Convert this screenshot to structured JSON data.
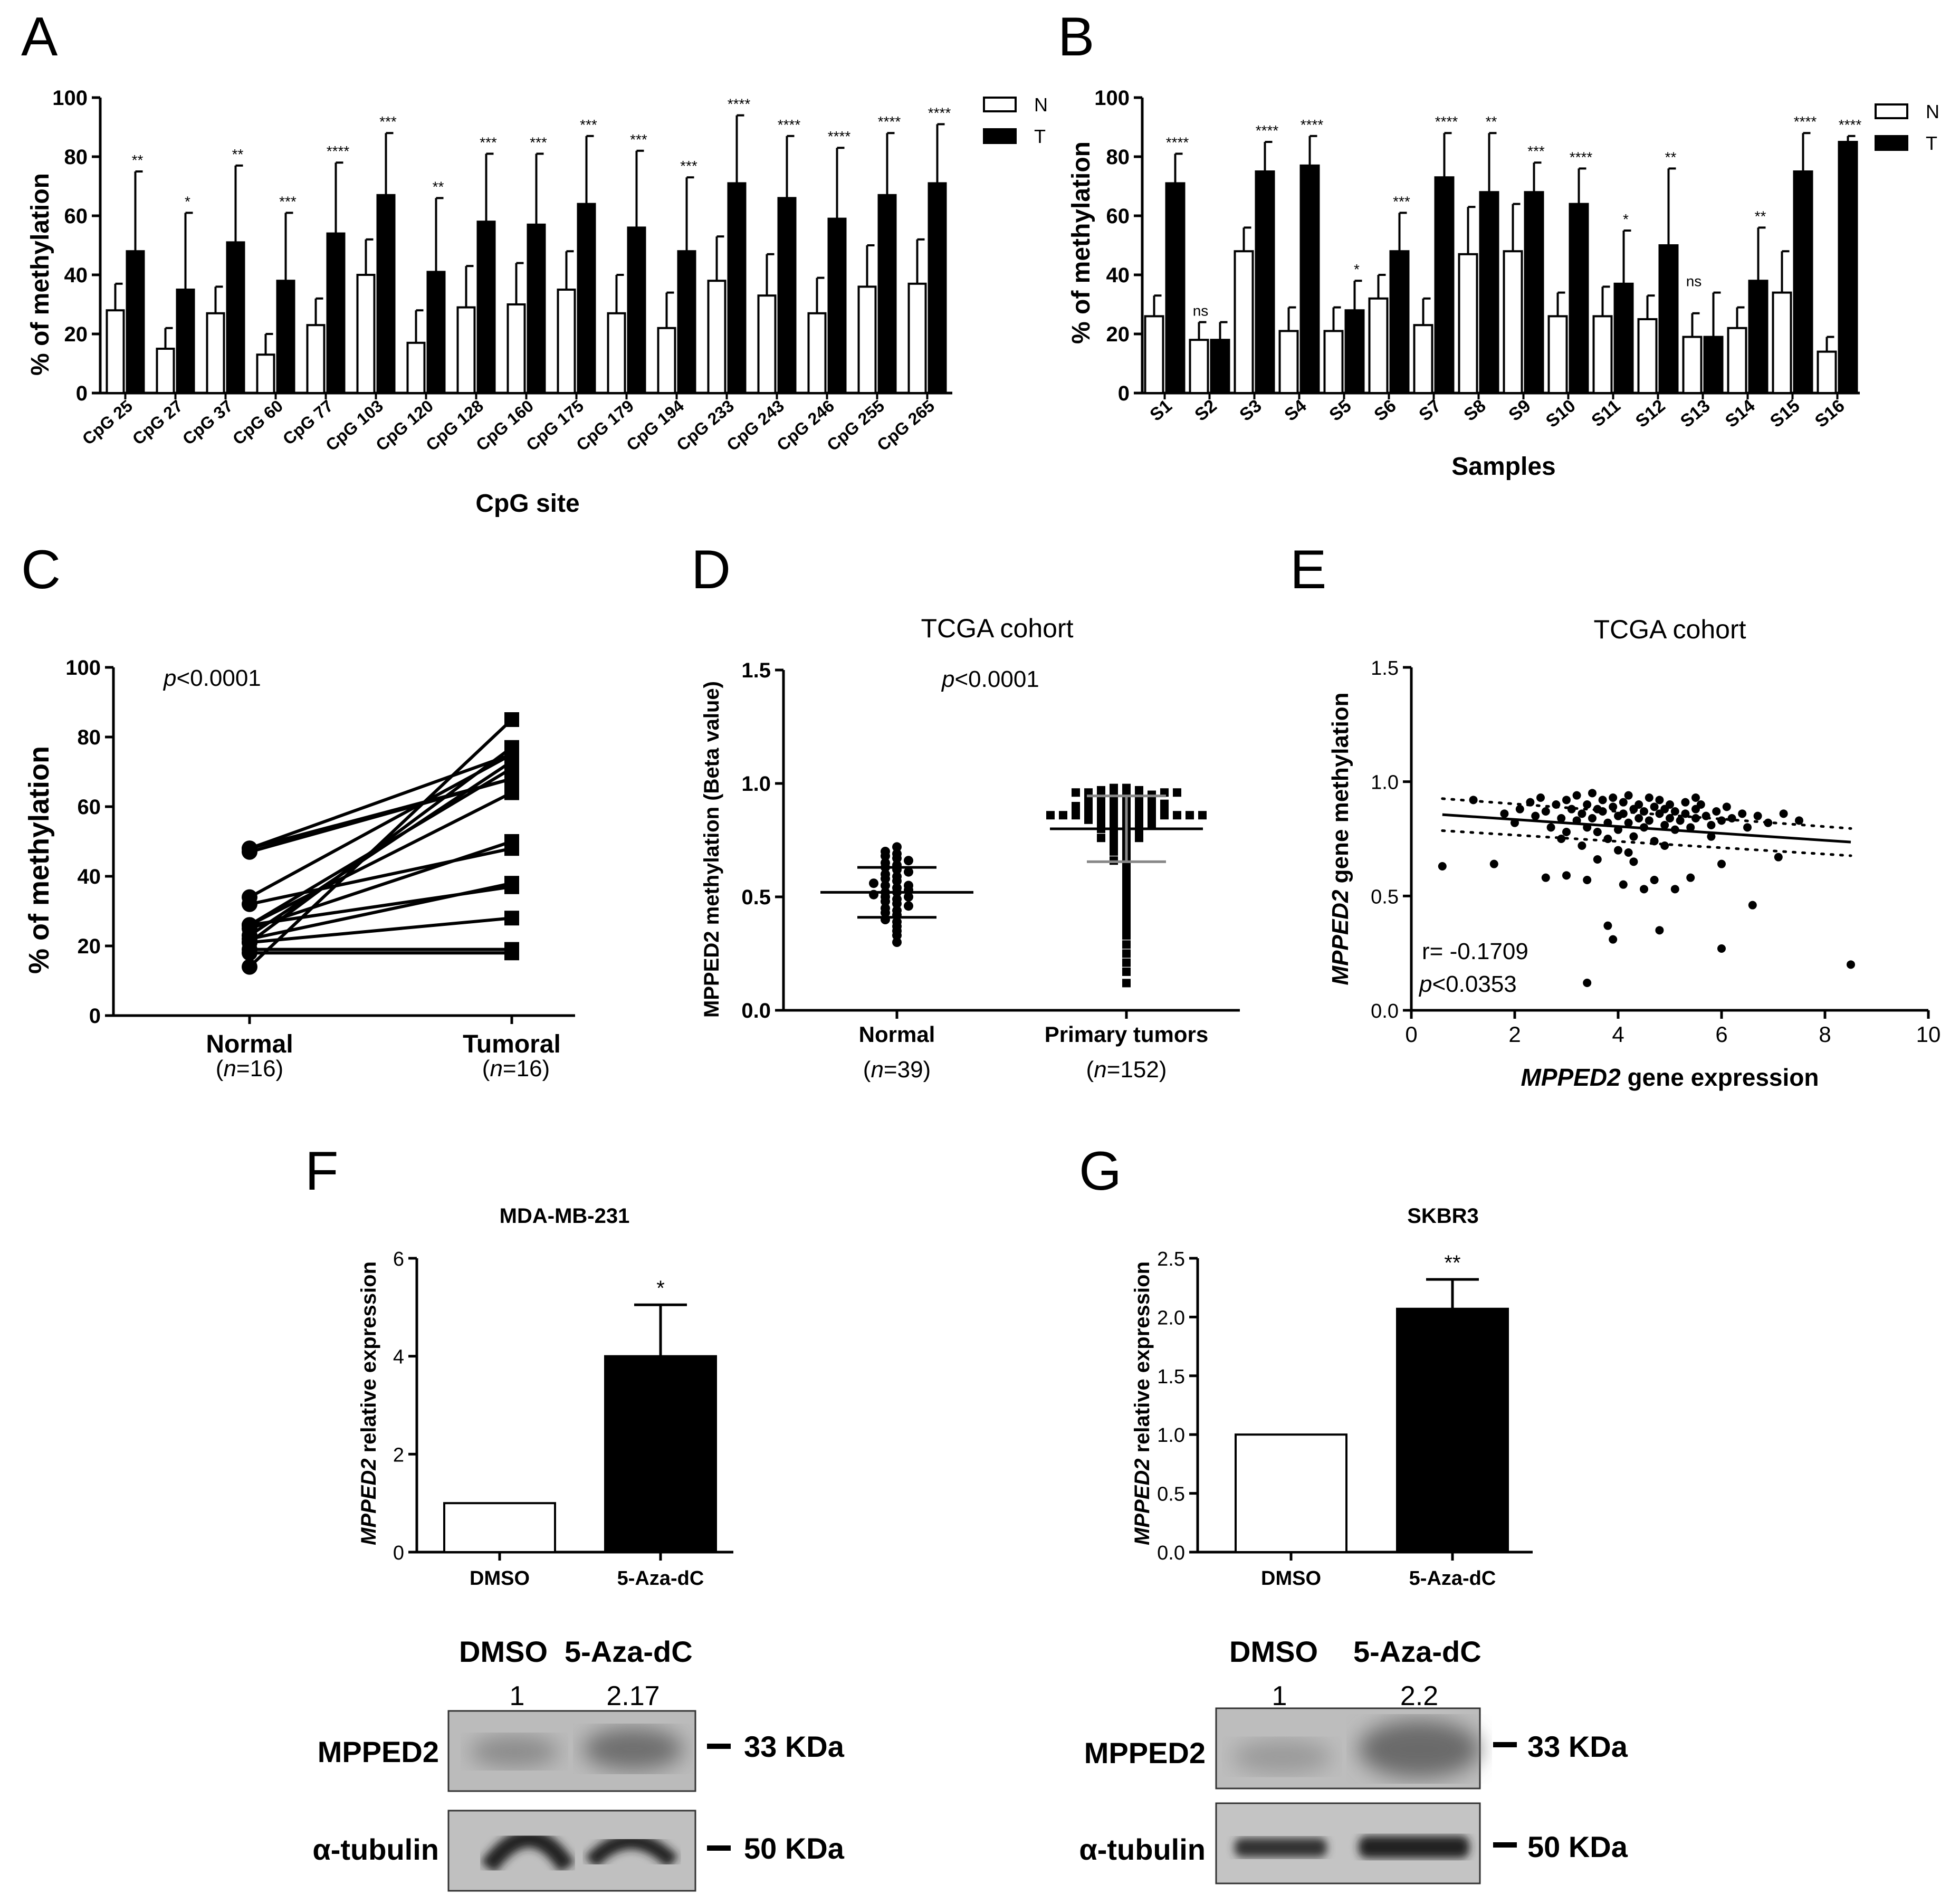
{
  "chart_data": [
    {
      "id": "A",
      "type": "bar",
      "panel_label": "A",
      "xlabel": "CpG site",
      "ylabel": "% of methylation",
      "ylim": [
        0,
        100
      ],
      "yticks": [
        "0",
        "20",
        "40",
        "60",
        "80",
        "100"
      ],
      "legend": [
        "N",
        "T"
      ],
      "legend_position": "top-right",
      "categories": [
        "CpG 25",
        "CpG 27",
        "CpG 37",
        "CpG 60",
        "CpG 77",
        "CpG 103",
        "CpG 120",
        "CpG 128",
        "CpG 160",
        "CpG 175",
        "CpG 179",
        "CpG 194",
        "CpG 233",
        "CpG 243",
        "CpG 246",
        "CpG 255",
        "CpG 265"
      ],
      "series": [
        {
          "name": "N",
          "values": [
            28,
            15,
            27,
            13,
            23,
            40,
            17,
            29,
            30,
            35,
            27,
            22,
            38,
            33,
            27,
            36,
            37
          ],
          "errors": [
            9,
            7,
            9,
            7,
            9,
            12,
            11,
            14,
            14,
            13,
            13,
            12,
            15,
            14,
            12,
            14,
            15
          ]
        },
        {
          "name": "T",
          "values": [
            48,
            35,
            51,
            38,
            54,
            67,
            41,
            58,
            57,
            64,
            56,
            48,
            71,
            66,
            59,
            67,
            71
          ],
          "errors": [
            27,
            26,
            26,
            23,
            24,
            21,
            25,
            23,
            24,
            23,
            26,
            25,
            23,
            21,
            24,
            21,
            20
          ]
        }
      ],
      "significance": [
        "**",
        "*",
        "**",
        "***",
        "****",
        "***",
        "**",
        "***",
        "***",
        "***",
        "***",
        "***",
        "****",
        "****",
        "****",
        "****",
        "****"
      ]
    },
    {
      "id": "B",
      "type": "bar",
      "panel_label": "B",
      "xlabel": "Samples",
      "ylabel": "% of methylation",
      "ylim": [
        0,
        100
      ],
      "yticks": [
        "0",
        "20",
        "40",
        "60",
        "80",
        "100"
      ],
      "legend": [
        "N",
        "T"
      ],
      "legend_position": "top-right",
      "categories": [
        "S1",
        "S2",
        "S3",
        "S4",
        "S5",
        "S6",
        "S7",
        "S8",
        "S9",
        "S10",
        "S11",
        "S12",
        "S13",
        "S14",
        "S15",
        "S16"
      ],
      "series": [
        {
          "name": "N",
          "values": [
            26,
            18,
            48,
            21,
            21,
            32,
            23,
            47,
            48,
            26,
            26,
            25,
            19,
            22,
            34,
            14
          ],
          "errors": [
            7,
            6,
            8,
            8,
            8,
            8,
            9,
            16,
            16,
            8,
            10,
            8,
            8,
            7,
            14,
            5
          ]
        },
        {
          "name": "T",
          "values": [
            71,
            18,
            75,
            77,
            28,
            48,
            73,
            68,
            68,
            64,
            37,
            50,
            19,
            38,
            75,
            85
          ],
          "errors": [
            10,
            6,
            10,
            10,
            10,
            13,
            15,
            20,
            10,
            12,
            18,
            26,
            15,
            18,
            13,
            2
          ]
        }
      ],
      "significance": [
        "****",
        "ns",
        "****",
        "****",
        "*",
        "***",
        "****",
        "**",
        "***",
        "****",
        "*",
        "**",
        "ns",
        "**",
        "****",
        "****"
      ]
    },
    {
      "id": "C",
      "type": "line",
      "panel_label": "C",
      "ylabel": "% of methylation",
      "ylim": [
        0,
        100
      ],
      "yticks": [
        "0",
        "20",
        "40",
        "60",
        "80",
        "100"
      ],
      "annotation": "p<0.0001",
      "annotation_italic": "p",
      "annotation_rest": "<0.0001",
      "categories": [
        "Normal",
        "Tumoral"
      ],
      "n_labels": [
        "(n=16)",
        "(n=16)"
      ],
      "n_prefix": "(",
      "n_var": "n",
      "n_values": [
        "=16)",
        "=16)"
      ],
      "pairs": [
        [
          26,
          71
        ],
        [
          18,
          18
        ],
        [
          48,
          75
        ],
        [
          21,
          77
        ],
        [
          21,
          28
        ],
        [
          32,
          48
        ],
        [
          23,
          73
        ],
        [
          47,
          68
        ],
        [
          48,
          68
        ],
        [
          26,
          64
        ],
        [
          26,
          37
        ],
        [
          25,
          50
        ],
        [
          19,
          19
        ],
        [
          22,
          38
        ],
        [
          34,
          75
        ],
        [
          14,
          85
        ]
      ]
    },
    {
      "id": "D",
      "type": "scatter",
      "panel_label": "D",
      "title": "TCGA cohort",
      "ylabel": "MPPED2 methylation (Beta value)",
      "ylim": [
        0,
        1.5
      ],
      "yticks": [
        "0.0",
        "0.5",
        "1.0",
        "1.5"
      ],
      "annotation_italic": "p",
      "annotation_rest": "<0.0001",
      "categories": [
        "Normal",
        "Primary tumors"
      ],
      "n_var": "n",
      "n_values": [
        "=39)",
        "=152)"
      ],
      "groups": [
        {
          "name": "Normal",
          "n": 39,
          "mean": 0.52,
          "sd": 0.11,
          "values": [
            0.3,
            0.33,
            0.35,
            0.37,
            0.39,
            0.4,
            0.42,
            0.43,
            0.44,
            0.45,
            0.46,
            0.47,
            0.48,
            0.49,
            0.5,
            0.5,
            0.51,
            0.52,
            0.52,
            0.53,
            0.54,
            0.55,
            0.55,
            0.56,
            0.57,
            0.58,
            0.59,
            0.6,
            0.61,
            0.62,
            0.63,
            0.64,
            0.65,
            0.66,
            0.67,
            0.68,
            0.69,
            0.7,
            0.72
          ]
        },
        {
          "name": "Primary tumors",
          "n": 152,
          "mean": 0.8,
          "sd": 0.145,
          "values": [
            0.12,
            0.17,
            0.21,
            0.25,
            0.29,
            0.33,
            0.36,
            0.39,
            0.42,
            0.45,
            0.48,
            0.5,
            0.52,
            0.54,
            0.56,
            0.58,
            0.6,
            0.61,
            0.62,
            0.63,
            0.64,
            0.65,
            0.66,
            0.67,
            0.68,
            0.69,
            0.7,
            0.7,
            0.71,
            0.72,
            0.73,
            0.73,
            0.74,
            0.75,
            0.75,
            0.76,
            0.76,
            0.77,
            0.77,
            0.78,
            0.78,
            0.78,
            0.79,
            0.79,
            0.79,
            0.8,
            0.8,
            0.8,
            0.8,
            0.81,
            0.81,
            0.81,
            0.81,
            0.82,
            0.82,
            0.82,
            0.82,
            0.82,
            0.83,
            0.83,
            0.83,
            0.83,
            0.83,
            0.84,
            0.84,
            0.84,
            0.84,
            0.84,
            0.84,
            0.85,
            0.85,
            0.85,
            0.85,
            0.85,
            0.85,
            0.86,
            0.86,
            0.86,
            0.86,
            0.86,
            0.86,
            0.86,
            0.87,
            0.87,
            0.87,
            0.87,
            0.87,
            0.87,
            0.87,
            0.88,
            0.88,
            0.88,
            0.88,
            0.88,
            0.88,
            0.88,
            0.88,
            0.89,
            0.89,
            0.89,
            0.89,
            0.89,
            0.89,
            0.89,
            0.89,
            0.9,
            0.9,
            0.9,
            0.9,
            0.9,
            0.9,
            0.9,
            0.9,
            0.91,
            0.91,
            0.91,
            0.91,
            0.91,
            0.91,
            0.91,
            0.92,
            0.92,
            0.92,
            0.92,
            0.92,
            0.92,
            0.93,
            0.93,
            0.93,
            0.93,
            0.93,
            0.93,
            0.94,
            0.94,
            0.94,
            0.94,
            0.94,
            0.95,
            0.95,
            0.95,
            0.95,
            0.95,
            0.96,
            0.96,
            0.96,
            0.96,
            0.97,
            0.97,
            0.97,
            0.97,
            0.98,
            0.98
          ]
        }
      ]
    },
    {
      "id": "E",
      "type": "scatter",
      "panel_label": "E",
      "title": "TCGA cohort",
      "xlabel_italic": "MPPED2",
      "xlabel_rest": " gene expression",
      "ylabel_italic": "MPPED2",
      "ylabel_rest": " gene methylation",
      "xlim": [
        0,
        10
      ],
      "ylim": [
        0,
        1.5
      ],
      "xticks": [
        "0",
        "2",
        "4",
        "6",
        "8",
        "10"
      ],
      "yticks": [
        "0.0",
        "0.5",
        "1.0",
        "1.5"
      ],
      "r_text": "r= -0.1709",
      "annotation_italic": "p",
      "annotation_rest": "<0.0353",
      "regression": {
        "slope": -0.0152,
        "intercept": 0.865,
        "ci_halfwidth": 0.07
      },
      "points": [
        [
          0.6,
          0.63
        ],
        [
          1.6,
          0.64
        ],
        [
          2.6,
          0.58
        ],
        [
          3.0,
          0.59
        ],
        [
          3.4,
          0.57
        ],
        [
          3.4,
          0.12
        ],
        [
          3.6,
          0.88
        ],
        [
          3.8,
          0.37
        ],
        [
          3.9,
          0.31
        ],
        [
          4.1,
          0.55
        ],
        [
          4.3,
          0.65
        ],
        [
          4.5,
          0.53
        ],
        [
          4.7,
          0.57
        ],
        [
          4.8,
          0.35
        ],
        [
          5.1,
          0.53
        ],
        [
          5.4,
          0.58
        ],
        [
          6.0,
          0.64
        ],
        [
          6.0,
          0.27
        ],
        [
          6.6,
          0.46
        ],
        [
          7.1,
          0.67
        ],
        [
          8.5,
          0.2
        ],
        [
          1.8,
          0.86
        ],
        [
          2.0,
          0.82
        ],
        [
          2.1,
          0.88
        ],
        [
          2.3,
          0.91
        ],
        [
          2.4,
          0.85
        ],
        [
          2.5,
          0.93
        ],
        [
          2.6,
          0.87
        ],
        [
          2.7,
          0.8
        ],
        [
          2.8,
          0.9
        ],
        [
          2.9,
          0.84
        ],
        [
          3.0,
          0.92
        ],
        [
          3.0,
          0.78
        ],
        [
          3.1,
          0.88
        ],
        [
          3.2,
          0.83
        ],
        [
          3.2,
          0.94
        ],
        [
          3.3,
          0.86
        ],
        [
          3.4,
          0.8
        ],
        [
          3.4,
          0.9
        ],
        [
          3.5,
          0.84
        ],
        [
          3.5,
          0.95
        ],
        [
          3.6,
          0.78
        ],
        [
          3.7,
          0.87
        ],
        [
          3.7,
          0.92
        ],
        [
          3.8,
          0.82
        ],
        [
          3.8,
          0.75
        ],
        [
          3.9,
          0.89
        ],
        [
          3.9,
          0.93
        ],
        [
          4.0,
          0.85
        ],
        [
          4.0,
          0.79
        ],
        [
          4.0,
          0.7
        ],
        [
          4.1,
          0.91
        ],
        [
          4.1,
          0.86
        ],
        [
          4.2,
          0.82
        ],
        [
          4.2,
          0.94
        ],
        [
          4.3,
          0.88
        ],
        [
          4.3,
          0.76
        ],
        [
          4.4,
          0.84
        ],
        [
          4.4,
          0.9
        ],
        [
          4.5,
          0.8
        ],
        [
          4.5,
          0.87
        ],
        [
          4.6,
          0.93
        ],
        [
          4.6,
          0.83
        ],
        [
          4.7,
          0.89
        ],
        [
          4.7,
          0.74
        ],
        [
          4.8,
          0.86
        ],
        [
          4.8,
          0.92
        ],
        [
          4.9,
          0.81
        ],
        [
          4.9,
          0.88
        ],
        [
          5.0,
          0.84
        ],
        [
          5.0,
          0.9
        ],
        [
          5.1,
          0.79
        ],
        [
          5.1,
          0.87
        ],
        [
          5.2,
          0.83
        ],
        [
          5.3,
          0.91
        ],
        [
          5.3,
          0.86
        ],
        [
          5.4,
          0.8
        ],
        [
          5.5,
          0.88
        ],
        [
          5.5,
          0.84
        ],
        [
          5.6,
          0.9
        ],
        [
          5.7,
          0.85
        ],
        [
          5.8,
          0.81
        ],
        [
          5.9,
          0.87
        ],
        [
          6.0,
          0.83
        ],
        [
          6.1,
          0.89
        ],
        [
          6.2,
          0.84
        ],
        [
          6.4,
          0.86
        ],
        [
          6.5,
          0.8
        ],
        [
          6.7,
          0.85
        ],
        [
          6.9,
          0.82
        ],
        [
          7.2,
          0.86
        ],
        [
          7.5,
          0.83
        ],
        [
          1.2,
          0.92
        ],
        [
          5.5,
          0.93
        ],
        [
          3.3,
          0.72
        ],
        [
          4.2,
          0.69
        ],
        [
          2.9,
          0.75
        ],
        [
          5.8,
          0.76
        ],
        [
          3.6,
          0.66
        ],
        [
          4.9,
          0.72
        ]
      ]
    },
    {
      "id": "F",
      "type": "bar",
      "panel_label": "F",
      "title": "MDA-MB-231",
      "ylabel_italic": "MPPED2",
      "ylabel_rest": " relative expression",
      "ylim": [
        0,
        6
      ],
      "yticks": [
        "0",
        "2",
        "4",
        "6"
      ],
      "categories": [
        "DMSO",
        "5-Aza-dC"
      ],
      "values": [
        1.0,
        4.0
      ],
      "errors": [
        0,
        1.05
      ],
      "significance": [
        "",
        "*"
      ]
    },
    {
      "id": "G",
      "type": "bar",
      "panel_label": "G",
      "title": "SKBR3",
      "ylabel_italic": "MPPED2",
      "ylabel_rest": " relative expression",
      "ylim": [
        0,
        2.5
      ],
      "yticks": [
        "0.0",
        "0.5",
        "1.0",
        "1.5",
        "2.0",
        "2.5"
      ],
      "categories": [
        "DMSO",
        "5-Aza-dC"
      ],
      "values": [
        1.0,
        2.07
      ],
      "errors": [
        0,
        0.25
      ],
      "significance": [
        "",
        "**"
      ]
    }
  ],
  "western_blots": [
    {
      "panel": "F",
      "lanes": [
        "DMSO",
        "5-Aza-dC"
      ],
      "quant": [
        "1",
        "2.17"
      ],
      "rows": [
        {
          "protein": "MPPED2",
          "size": "33 KDa"
        },
        {
          "protein": "α-tubulin",
          "size": "50 KDa"
        }
      ]
    },
    {
      "panel": "G",
      "lanes": [
        "DMSO",
        "5-Aza-dC"
      ],
      "quant": [
        "1",
        "2.2"
      ],
      "rows": [
        {
          "protein": "MPPED2",
          "size": "33 KDa"
        },
        {
          "protein": "α-tubulin",
          "size": "50 KDa"
        }
      ]
    }
  ]
}
